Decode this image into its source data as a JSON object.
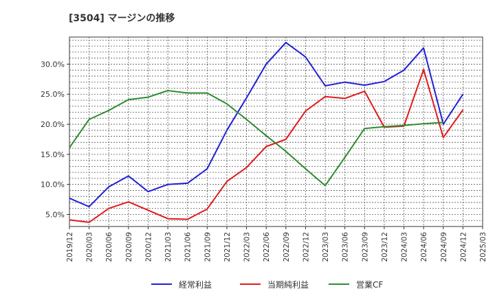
{
  "chart_data": {
    "type": "line",
    "title": "[3504]  マージンの推移",
    "xlabel": "",
    "ylabel": "",
    "ylim": [
      3.0,
      34.5
    ],
    "yticks": [
      5.0,
      10.0,
      15.0,
      20.0,
      25.0,
      30.0
    ],
    "ytick_labels": [
      "5.0%",
      "10.0%",
      "15.0%",
      "20.0%",
      "25.0%",
      "30.0%"
    ],
    "categories": [
      "2019/12",
      "2020/03",
      "2020/06",
      "2020/09",
      "2020/12",
      "2021/03",
      "2021/06",
      "2021/09",
      "2021/12",
      "2022/03",
      "2022/06",
      "2022/09",
      "2022/12",
      "2023/03",
      "2023/06",
      "2023/09",
      "2023/12",
      "2024/03",
      "2024/06",
      "2024/09",
      "2024/12",
      "2025/03"
    ],
    "grid": true,
    "legend_position": "bottom",
    "series": [
      {
        "name": "経常利益",
        "color": "#1f1fd6",
        "values": [
          7.7,
          6.3,
          9.6,
          11.4,
          8.8,
          10.0,
          10.2,
          12.6,
          19.0,
          24.4,
          30.0,
          33.6,
          31.2,
          26.4,
          27.0,
          26.5,
          27.1,
          29.0,
          32.7,
          20.0,
          25.0,
          null
        ]
      },
      {
        "name": "当期純利益",
        "color": "#e01a1a",
        "values": [
          4.1,
          3.7,
          6.0,
          7.1,
          5.7,
          4.3,
          4.2,
          5.9,
          10.5,
          12.8,
          16.3,
          17.5,
          22.2,
          24.6,
          24.3,
          25.5,
          19.5,
          19.7,
          29.1,
          17.8,
          22.4,
          null
        ]
      },
      {
        "name": "営業CF",
        "color": "#2e8b2e",
        "values": [
          16.1,
          20.8,
          22.3,
          24.1,
          24.5,
          25.6,
          25.2,
          25.2,
          23.4,
          20.8,
          18.1,
          15.5,
          12.6,
          9.8,
          14.5,
          19.3,
          19.6,
          19.8,
          20.1,
          20.3,
          null,
          null
        ]
      }
    ]
  }
}
